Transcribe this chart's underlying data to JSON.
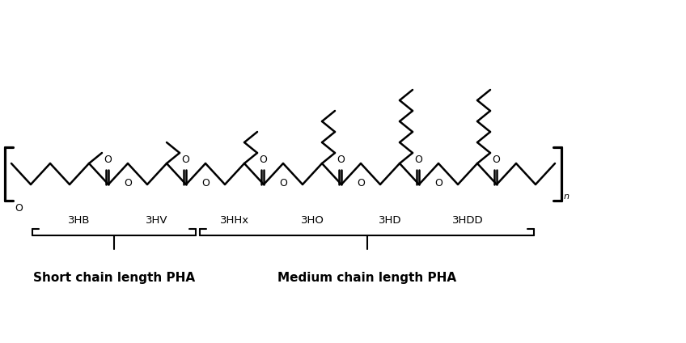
{
  "bg_color": "#ffffff",
  "line_color": "#000000",
  "lw": 1.8,
  "monomer_labels": [
    "3HB",
    "3HV",
    "3HHx",
    "3HO",
    "3HD",
    "3HDD"
  ],
  "short_chain_label": "Short chain length PHA",
  "medium_chain_label": "Medium chain length PHA",
  "figsize": [
    8.48,
    4.24
  ],
  "dpi": 100,
  "side_chain_bonds": [
    1,
    2,
    3,
    5,
    7,
    7
  ],
  "label_fontsize": 11,
  "mono_label_fontsize": 9.5
}
